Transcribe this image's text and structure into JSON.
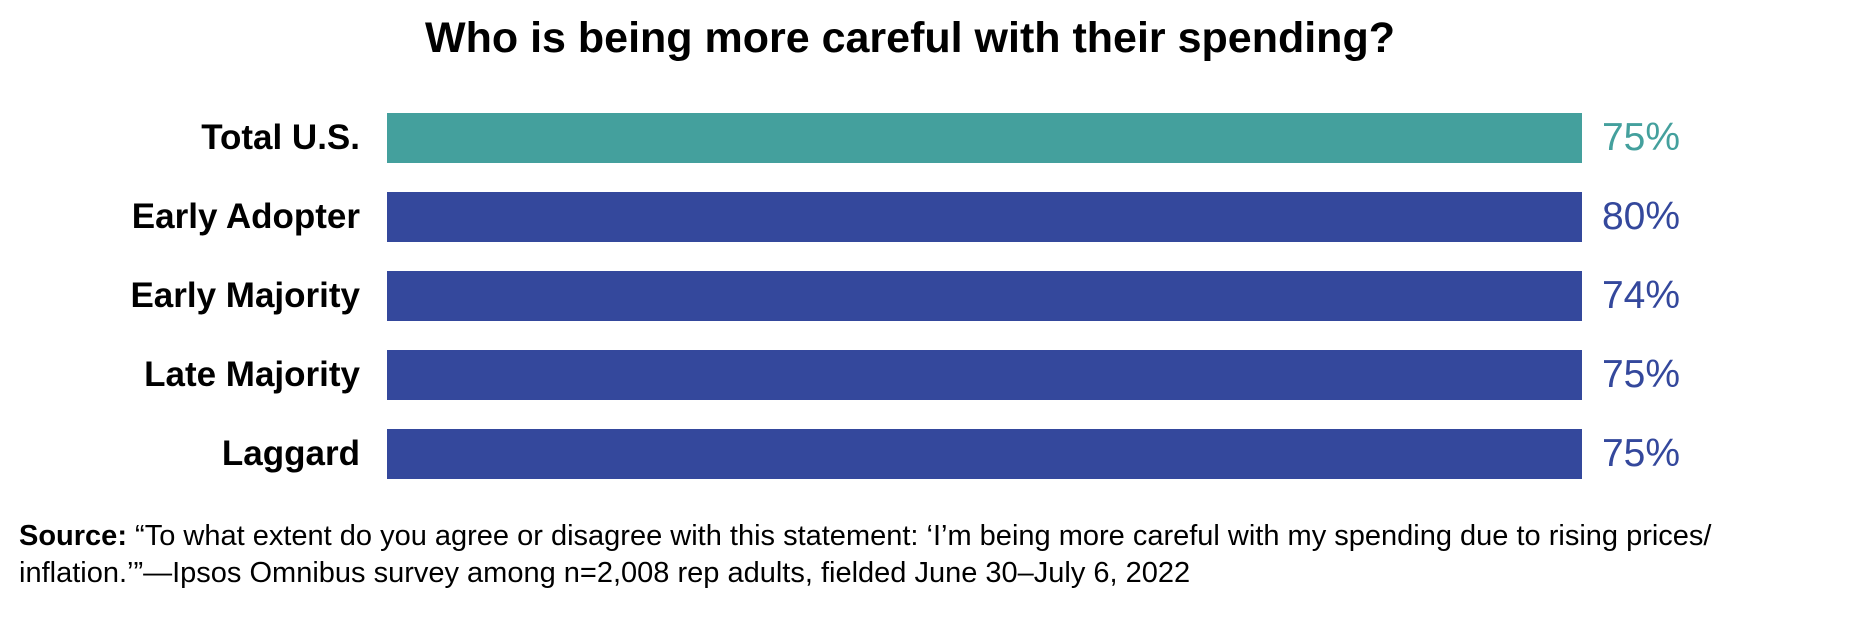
{
  "chart_data": {
    "type": "bar",
    "orientation": "horizontal",
    "title": "Who is being more careful with their spending?",
    "categories": [
      "Total U.S.",
      "Early Adopter",
      "Early Majority",
      "Late Majority",
      "Laggard"
    ],
    "values": [
      75,
      80,
      74,
      75,
      75
    ],
    "value_labels": [
      "75%",
      "80%",
      "74%",
      "75%",
      "75%"
    ],
    "bar_colors": [
      "#44A09D",
      "#34489C",
      "#34489C",
      "#34489C",
      "#34489C"
    ],
    "value_axis_max": 80,
    "xlabel": "",
    "ylabel": "",
    "grid": false,
    "legend": false,
    "value_label_position": "outside-end",
    "accent_teal": "#44A09D",
    "accent_blue": "#34489C"
  },
  "source": {
    "label": "Source:",
    "line1": " “To what extent do you agree or disagree with this statement: ‘I’m being more careful with my spending due to rising prices/",
    "line2": "inflation.’”—Ipsos Omnibus survey among n=2,008 rep adults, fielded June 30–July 6, 2022"
  }
}
